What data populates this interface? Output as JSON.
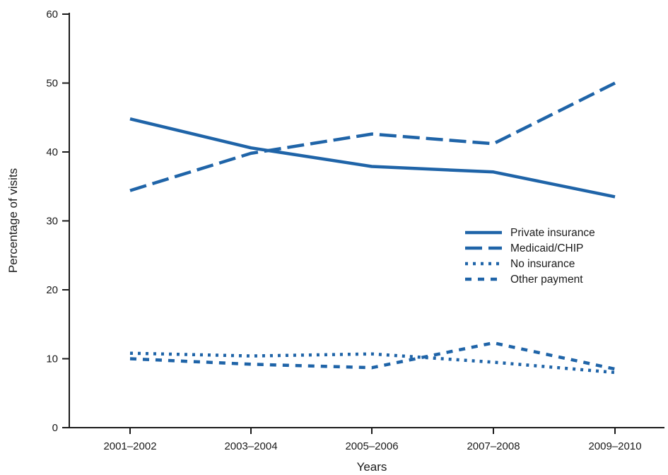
{
  "chart_data": {
    "type": "line",
    "title": "",
    "xlabel": "Years",
    "ylabel": "Percentage of visits",
    "categories": [
      "2001–2002",
      "2003–2004",
      "2005–2006",
      "2007–2008",
      "2009–2010"
    ],
    "ylim": [
      0,
      60
    ],
    "yticks": [
      "0",
      "10",
      "20",
      "30",
      "40",
      "50",
      "60"
    ],
    "grid": false,
    "legend_position": "center-right",
    "line_color": "#1f64a8",
    "series": [
      {
        "name": "Private insurance",
        "style": "solid",
        "values": [
          44.8,
          40.6,
          37.9,
          37.1,
          33.5
        ]
      },
      {
        "name": "Medicaid/CHIP",
        "style": "dashed",
        "values": [
          34.4,
          39.8,
          42.6,
          41.2,
          50.0
        ]
      },
      {
        "name": "No insurance",
        "style": "dotted",
        "values": [
          10.8,
          10.4,
          10.7,
          9.5,
          8.0
        ]
      },
      {
        "name": "Other payment",
        "style": "short-dashed",
        "values": [
          10.0,
          9.2,
          8.7,
          12.3,
          8.5
        ]
      }
    ]
  }
}
